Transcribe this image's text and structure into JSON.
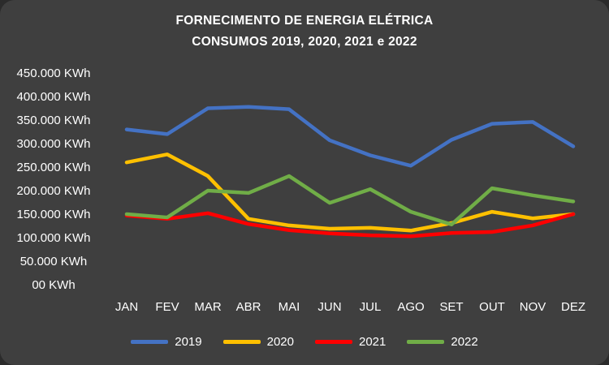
{
  "chart_data": {
    "type": "line",
    "title_line1": "FORNECIMENTO DE ENERGIA ELÉTRICA",
    "title_line2": "CONSUMOS 2019, 2020, 2021 e 2022",
    "categories": [
      "JAN",
      "FEV",
      "MAR",
      "ABR",
      "MAI",
      "JUN",
      "JUL",
      "AGO",
      "SET",
      "OUT",
      "NOV",
      "DEZ"
    ],
    "series": [
      {
        "name": "2019",
        "color": "#4472C4",
        "values": [
          330000,
          320000,
          375000,
          378000,
          373000,
          307000,
          275000,
          253000,
          308000,
          342000,
          346000,
          294000
        ]
      },
      {
        "name": "2020",
        "color": "#FFC000",
        "values": [
          260000,
          277000,
          231000,
          140000,
          126000,
          119000,
          121000,
          115000,
          131000,
          155000,
          141000,
          150000
        ]
      },
      {
        "name": "2021",
        "color": "#FF0000",
        "values": [
          147000,
          140000,
          152000,
          129000,
          116000,
          109000,
          105000,
          103000,
          110000,
          112000,
          126000,
          150000
        ]
      },
      {
        "name": "2022",
        "color": "#70AD47",
        "values": [
          150000,
          143000,
          200000,
          195000,
          231000,
          174000,
          203000,
          155000,
          128000,
          205000,
          190000,
          177000
        ]
      }
    ],
    "ylim": [
      0,
      450000
    ],
    "ytick_step": 50000,
    "ytick_labels": [
      "00 KWh",
      "50.000 KWh",
      "100.000 KWh",
      "150.000 KWh",
      "200.000 KWh",
      "250.000 KWh",
      "300.000 KWh",
      "350.000 KWh",
      "400.000 KWh",
      "450.000 KWh"
    ],
    "grid": false,
    "legend_position": "bottom",
    "background_color": "#3F3F3F",
    "text_color": "#FFFFFF"
  }
}
